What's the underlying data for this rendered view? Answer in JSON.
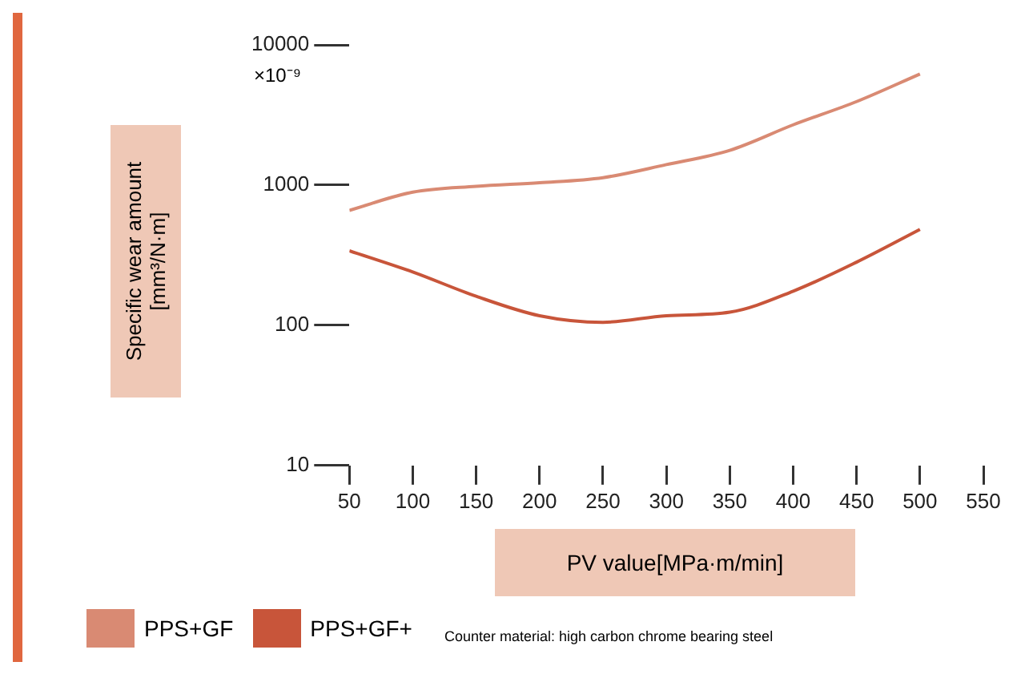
{
  "chart_data": {
    "type": "line",
    "xlabel": "PV value[MPa·m/min]",
    "ylabel": "Specific wear amount [mm³/N·m]",
    "x": [
      50,
      100,
      150,
      200,
      250,
      300,
      350,
      400,
      450,
      500
    ],
    "log": "y",
    "legend": "bottom left",
    "marker": "none",
    "xlim": [
      50,
      550
    ],
    "xticks": [
      50,
      100,
      150,
      200,
      250,
      300,
      350,
      400,
      450,
      500,
      550
    ],
    "ylim": [
      10,
      10000
    ],
    "yticks": [
      10,
      100,
      1000,
      10000
    ],
    "series": [
      {
        "name": "PPS+GF",
        "color": "#d98a73",
        "values": [
          660,
          890,
          980,
          1040,
          1130,
          1400,
          1770,
          2690,
          3940,
          6200
        ]
      },
      {
        "name": "PPS+GF+",
        "color": "#c8553a",
        "values": [
          340,
          240,
          161,
          117,
          105,
          117,
          124,
          175,
          282,
          483
        ]
      }
    ],
    "annotations": [
      "×10⁻⁹",
      "Counter material: high carbon chrome bearing steel"
    ]
  }
}
